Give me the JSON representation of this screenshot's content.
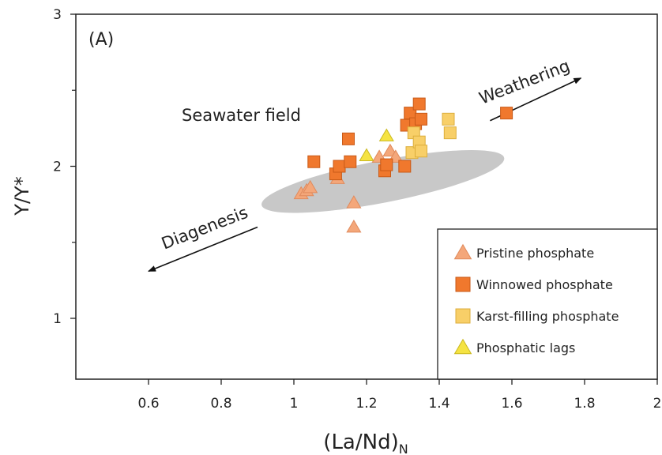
{
  "chart_data": {
    "type": "scatter",
    "panel_label": "(A)",
    "xlabel_main": "(La/Nd)",
    "xlabel_sub": "N",
    "ylabel": "Y/Y*",
    "xlim": [
      0.4,
      2.0
    ],
    "ylim": [
      0.6,
      3.0
    ],
    "x_ticks": [
      "0.6",
      "0.8",
      "1",
      "1.2",
      "1.4",
      "1.6",
      "1.8",
      "2"
    ],
    "x_tick_values": [
      0.6,
      0.8,
      1.0,
      1.2,
      1.4,
      1.6,
      1.8,
      2.0
    ],
    "y_ticks": [
      "1",
      "2",
      "3"
    ],
    "y_tick_values": [
      1,
      2,
      3
    ],
    "field": {
      "label": "Seawater field",
      "label_x": 1.01,
      "label_y": 2.34,
      "center": [
        1.245,
        1.9
      ],
      "semi_axis_x": 0.34,
      "semi_axis_y": 0.33,
      "rotation_deg": -11,
      "color": "#c8c8c8"
    },
    "arrows": [
      {
        "label": "Weathering",
        "from": [
          1.54,
          2.3
        ],
        "to": [
          1.79,
          2.58
        ],
        "label_x": 1.64,
        "label_y": 2.52,
        "label_rotation": -21
      },
      {
        "label": "Diagenesis",
        "from": [
          0.9,
          1.6
        ],
        "to": [
          0.6,
          1.31
        ],
        "label_x": 0.76,
        "label_y": 1.56,
        "label_rotation": -21
      }
    ],
    "series": [
      {
        "name": "Pristine phosphate",
        "marker": "triangle",
        "color": "#f4a77a",
        "stroke": "#e08a5c",
        "points": [
          [
            1.02,
            1.82
          ],
          [
            1.035,
            1.84
          ],
          [
            1.045,
            1.86
          ],
          [
            1.12,
            1.92
          ],
          [
            1.165,
            1.76
          ],
          [
            1.165,
            1.6
          ],
          [
            1.235,
            2.06
          ],
          [
            1.265,
            2.1
          ],
          [
            1.28,
            2.06
          ]
        ]
      },
      {
        "name": "Winnowed phosphate",
        "marker": "square",
        "color": "#f0782d",
        "stroke": "#c85a18",
        "points": [
          [
            1.055,
            2.03
          ],
          [
            1.115,
            1.95
          ],
          [
            1.125,
            2.0
          ],
          [
            1.15,
            2.18
          ],
          [
            1.155,
            2.03
          ],
          [
            1.25,
            1.97
          ],
          [
            1.255,
            2.01
          ],
          [
            1.305,
            2.0
          ],
          [
            1.31,
            2.27
          ],
          [
            1.32,
            2.35
          ],
          [
            1.335,
            2.28
          ],
          [
            1.345,
            2.41
          ],
          [
            1.35,
            2.31
          ],
          [
            1.585,
            2.35
          ]
        ]
      },
      {
        "name": "Karst-filling phosphate",
        "marker": "square",
        "color": "#f8cf68",
        "stroke": "#dcae3c",
        "points": [
          [
            1.325,
            2.09
          ],
          [
            1.33,
            2.22
          ],
          [
            1.345,
            2.16
          ],
          [
            1.35,
            2.1
          ],
          [
            1.425,
            2.31
          ],
          [
            1.43,
            2.22
          ]
        ]
      },
      {
        "name": "Phosphatic lags",
        "marker": "triangle",
        "color": "#f5e342",
        "stroke": "#c9b820",
        "points": [
          [
            1.2,
            2.07
          ],
          [
            1.255,
            2.2
          ]
        ]
      }
    ],
    "legend_position": "bottom-right",
    "grid": false
  }
}
